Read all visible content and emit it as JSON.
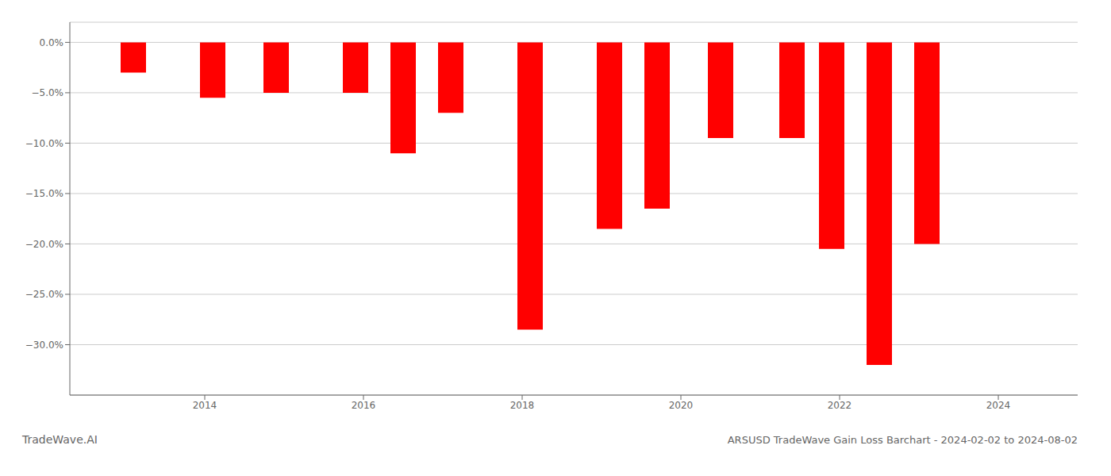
{
  "chart_data": {
    "type": "bar",
    "title": "ARSUSD TradeWave Gain Loss Barchart - 2024-02-02 to 2024-08-02",
    "annotations": [
      "TradeWave.AI"
    ],
    "x": [
      2013.1,
      2014.1,
      2014.9,
      2015.9,
      2016.5,
      2017.1,
      2018.1,
      2019.1,
      2019.7,
      2020.5,
      2021.4,
      2021.9,
      2022.5,
      2023.1
    ],
    "values": [
      -3.0,
      -5.5,
      -5.0,
      -5.0,
      -11.0,
      -7.0,
      -28.5,
      -18.5,
      -16.5,
      -9.5,
      -9.5,
      -20.5,
      -32.0,
      -20.0
    ],
    "color": "#ff0000",
    "xlim": [
      2012.3,
      2025.0
    ],
    "xticks": [
      2014,
      2016,
      2018,
      2020,
      2022,
      2024
    ],
    "ylim": [
      -35.0,
      2.0
    ],
    "yticks": [
      {
        "value": 0.0,
        "label": "0.0%"
      },
      {
        "value": -5.0,
        "label": "−5.0%"
      },
      {
        "value": -10.0,
        "label": "−10.0%"
      },
      {
        "value": -15.0,
        "label": "−15.0%"
      },
      {
        "value": -20.0,
        "label": "−20.0%"
      },
      {
        "value": -25.0,
        "label": "−25.0%"
      },
      {
        "value": -30.0,
        "label": "−30.0%"
      }
    ],
    "grid": true
  }
}
